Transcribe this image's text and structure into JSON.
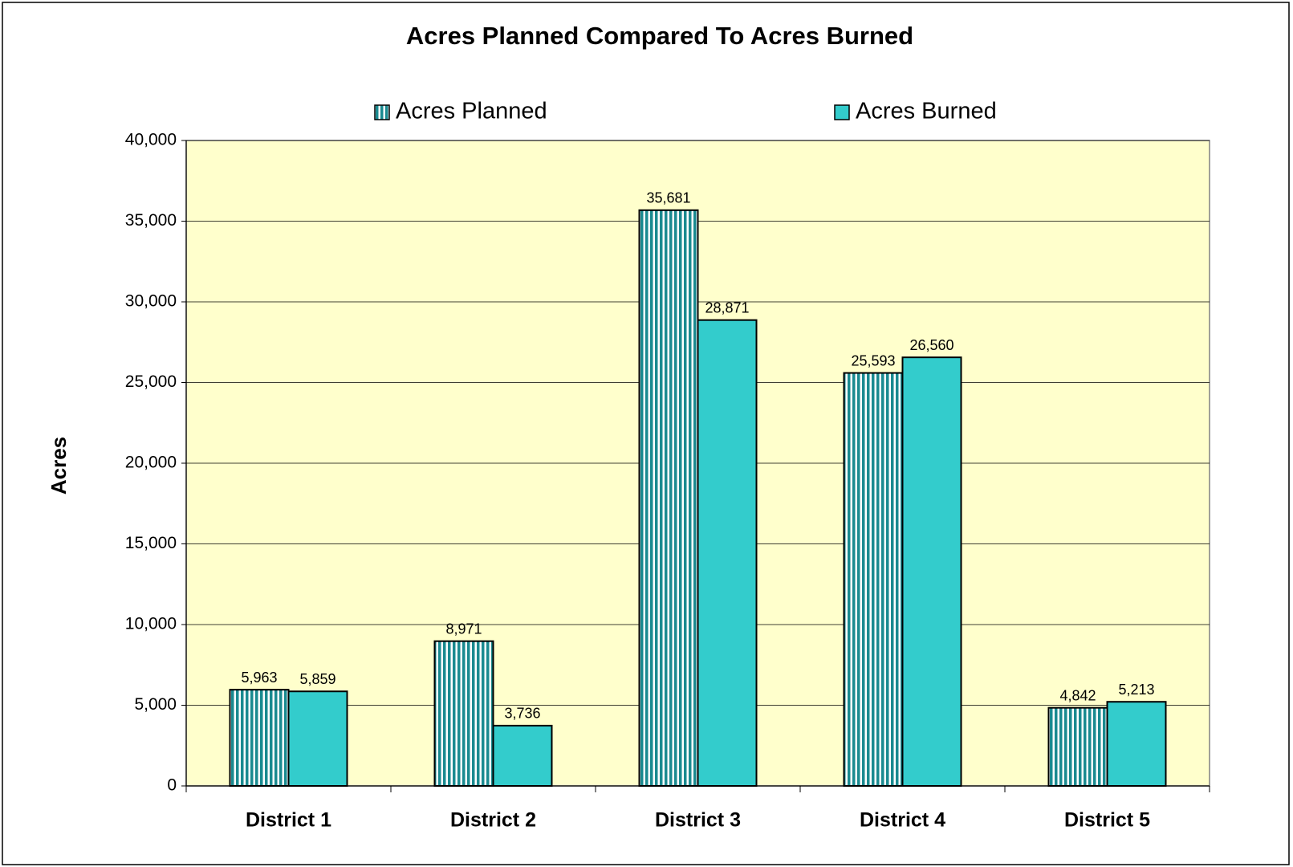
{
  "chart_data": {
    "type": "bar",
    "title": "Acres Planned Compared To Acres Burned",
    "y_label": "Acres",
    "categories": [
      "District 1",
      "District 2",
      "District 3",
      "District 4",
      "District 5"
    ],
    "series": [
      {
        "name": "Acres Planned",
        "color": "#1a8a90",
        "pattern": "vertical-stripes",
        "values": [
          5963,
          8971,
          35681,
          25593,
          4842
        ],
        "value_labels": [
          "5,963",
          "8,971",
          "35,681",
          "25,593",
          "4,842"
        ]
      },
      {
        "name": "Acres Burned",
        "color": "#33cccc",
        "values": [
          5859,
          3736,
          28871,
          26560,
          5213
        ],
        "value_labels": [
          "5,859",
          "3,736",
          "28,871",
          "26,560",
          "5,213"
        ]
      }
    ],
    "ylim": [
      0,
      40000
    ],
    "yticks": [
      0,
      {
        "value": 5000,
        "label": "5,000"
      },
      {
        "value": 10000,
        "label": "10,000"
      },
      {
        "value": 15000,
        "label": "15,000"
      },
      {
        "value": 20000,
        "label": "20,000"
      },
      {
        "value": 25000,
        "label": "25,000"
      },
      {
        "value": 30000,
        "label": "30,000"
      },
      {
        "value": 35000,
        "label": "35,000"
      },
      {
        "value": 40000,
        "label": "40,000"
      }
    ],
    "grid": true,
    "legend": "top",
    "plot_background": "#ffffcc"
  }
}
